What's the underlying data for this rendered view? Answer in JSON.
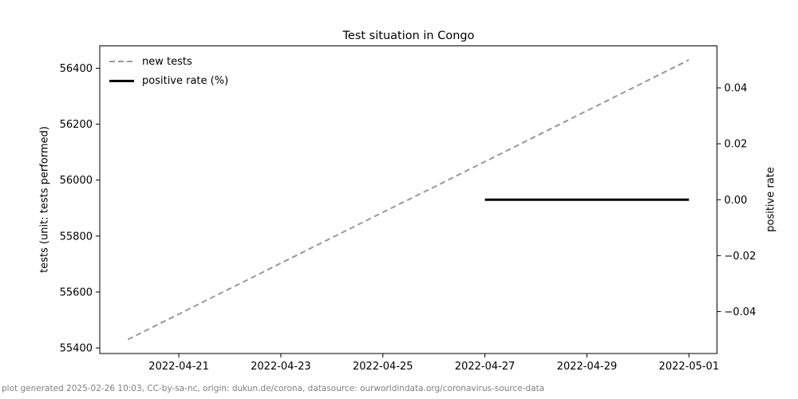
{
  "chart_data": {
    "type": "line",
    "title": "Test situation in Congo",
    "ylabel_left": "tests (unit: tests performed)",
    "ylabel_right": "positive rate",
    "grid": false,
    "legend_position": "upper left",
    "x_tick_labels": [
      "2022-04-21",
      "2022-04-23",
      "2022-04-25",
      "2022-04-27",
      "2022-04-29",
      "2022-05-01"
    ],
    "x_tick_days": [
      1,
      3,
      5,
      7,
      9,
      11
    ],
    "x_day_zero": "2022-04-20",
    "xlim_days": [
      -0.55,
      11.55
    ],
    "left_ticks": [
      55400,
      55600,
      55800,
      56000,
      56200,
      56400
    ],
    "left_tick_labels": [
      "55400",
      "55600",
      "55800",
      "56000",
      "56200",
      "56400"
    ],
    "ylim_left": [
      55380,
      56480
    ],
    "right_ticks": [
      0.04,
      0.02,
      0.0,
      -0.02,
      -0.04
    ],
    "right_tick_labels": [
      "0.04",
      "0.02",
      "0.00",
      "−0.02",
      "−0.04"
    ],
    "ylim_right": [
      -0.055,
      0.055
    ],
    "series": [
      {
        "id": "new-tests",
        "name": "new tests",
        "axis": "left",
        "color": "#999999",
        "style": "dashed",
        "width": 2,
        "dates": [
          "2022-04-20",
          "2022-04-21",
          "2022-04-22",
          "2022-04-23",
          "2022-04-24",
          "2022-04-25",
          "2022-04-26",
          "2022-04-27",
          "2022-04-28",
          "2022-04-29",
          "2022-04-30",
          "2022-05-01"
        ],
        "x_days": [
          0,
          1,
          2,
          3,
          4,
          5,
          6,
          7,
          8,
          9,
          10,
          11
        ],
        "values": [
          55430,
          55521,
          55612,
          55703,
          55794,
          55885,
          55975,
          56066,
          56157,
          56248,
          56339,
          56430
        ]
      },
      {
        "id": "positive-rate",
        "name": "positive rate (%)",
        "axis": "right",
        "color": "#000000",
        "style": "solid",
        "width": 3,
        "dates": [
          "2022-04-27",
          "2022-04-28",
          "2022-04-29",
          "2022-04-30",
          "2022-05-01"
        ],
        "x_days": [
          7,
          8,
          9,
          10,
          11
        ],
        "values": [
          0,
          0,
          0,
          0,
          0
        ]
      }
    ]
  },
  "footer": {
    "text": "plot generated 2025-02-26 10:03, CC-by-sa-nc, origin: dukun.de/corona, datasource: ourworldindata.org/coronavirus-source-data"
  },
  "colors": {
    "background": "#ffffff",
    "axes": "#000000",
    "dashed_line": "#999999",
    "solid_line": "#000000",
    "footer_text": "#7f7f7f"
  }
}
